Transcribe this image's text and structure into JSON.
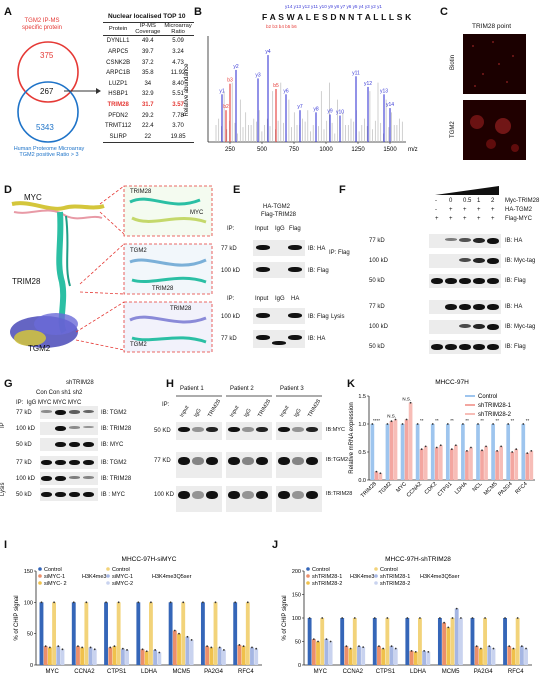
{
  "panels": {
    "A": {
      "label": "A",
      "venn_left_label": "TGM2 IP-MS\nspecific protein",
      "venn_right_label": "Human Proteome Microarray\nTGM2 positive Ratio > 3",
      "venn_left_count": "375",
      "venn_overlap_count": "267",
      "venn_right_count": "5343",
      "table_title": "Nuclear localised TOP 10",
      "table_headers": [
        "Protein",
        "IP-MS Coverage",
        "Microarray Ratio"
      ],
      "table_rows": [
        [
          "DYNLL1",
          "49.4",
          "5.09"
        ],
        [
          "ARPC5",
          "39.7",
          "3.24"
        ],
        [
          "CSNK2B",
          "37.2",
          "4.73"
        ],
        [
          "ARPC1B",
          "35.8",
          "11.92"
        ],
        [
          "LUZP1",
          "34",
          "8.40"
        ],
        [
          "HSBP1",
          "32.9",
          "5.51"
        ],
        [
          "TRIM28",
          "31.7",
          "3.57"
        ],
        [
          "PFDN2",
          "29.2",
          "7.78"
        ],
        [
          "TRMT112",
          "22.4",
          "3.70"
        ],
        [
          "SLIRP",
          "22",
          "19.85"
        ]
      ],
      "highlight_color": "#e53935"
    },
    "B": {
      "label": "B",
      "sequence": "F A S W A L E S D N N T A L L L S K",
      "y_ions": "y14 y13 y12 y11 y10 y9 y8 y7 y6 y5 y4 y3 y2 y1",
      "b_ions": "b2 b3 b4 b5 b6",
      "ylabel": "Relative abundance",
      "xunit": "m/z",
      "xticks": [
        "250",
        "500",
        "750",
        "1000",
        "1250",
        "1500"
      ],
      "peak_labels": [
        "y1",
        "b3",
        "y2",
        "y3",
        "y4",
        "y6",
        "y10",
        "y11",
        "y12",
        "y13",
        "y14",
        "y7",
        "y8",
        "y9",
        "b2",
        "b5"
      ],
      "ion_y_color": "#3a3ad6",
      "ion_b_color": "#e53935"
    },
    "C": {
      "label": "C",
      "title": "TRIM28 point",
      "rows": [
        "Biotin",
        "TGM2"
      ]
    },
    "D": {
      "label": "D",
      "labels": [
        "MYC",
        "TRIM28",
        "TGM2",
        "TRIM28",
        "TGM2",
        "MYC",
        "TRIM28",
        "TGM2",
        "TRIM28"
      ]
    },
    "E": {
      "label": "E",
      "head1": "HA-TGM2",
      "head2": "Flag-TRIM28",
      "ip_row": [
        "IP:",
        "Input",
        "IgG",
        "Flag"
      ],
      "ip_row2": [
        "IP:",
        "Input",
        "IgG",
        "HA"
      ],
      "mw": [
        "77 kD",
        "100 kD",
        "100 kD",
        "77 kD"
      ],
      "ib": [
        "IB: HA",
        "IB: Flag",
        "IB: Flag",
        "IB: HA"
      ]
    },
    "F": {
      "label": "F",
      "conditions": [
        {
          "name": "Myc-TRIM28",
          "vals": [
            "-",
            "0",
            "0.5",
            "1",
            "2"
          ]
        },
        {
          "name": "HA-TGM2",
          "vals": [
            "-",
            "+",
            "+",
            "+",
            "+"
          ]
        },
        {
          "name": "Flag-MYC",
          "vals": [
            "+",
            "+",
            "+",
            "+",
            "+"
          ]
        }
      ],
      "group_ip": "IP: Flag",
      "group_lysis": "Lysis",
      "mw": [
        "77 kD",
        "100 kD",
        "50 kD",
        "77 kD",
        "100 kD",
        "50 kD"
      ],
      "ib": [
        "IB: HA",
        "IB: Myc-tag",
        "IB: Flag",
        "IB: HA",
        "IB: Myc-tag",
        "IB: Flag"
      ]
    },
    "G": {
      "label": "G",
      "head": "shTRIM28",
      "sub": "Con Con sh1 sh2",
      "ip_row": "IP:  IgG MYC MYC MYC",
      "group_ip": "IP",
      "group_lysis": "Lysis",
      "mw": [
        "77 kD",
        "100 kD",
        "50 kD",
        "77 kD",
        "100 kD",
        "50 kD"
      ],
      "ib": [
        "IB: TGM2",
        "IB: TRIM28",
        "IB: MYC",
        "IB: TGM2",
        "IB: TRIM28",
        "IB : MYC"
      ]
    },
    "H": {
      "label": "H",
      "patients": [
        "Patient 1",
        "Patient 2",
        "Patient 3"
      ],
      "lanes": [
        "Input",
        "IgG",
        "TRIM28"
      ],
      "ip": "IP:",
      "mw": [
        "50 KD",
        "77 KD",
        "100 KD"
      ],
      "ib": [
        "IB:MYC",
        "IB:TGM2",
        "IB:TRIM28"
      ]
    },
    "K": {
      "label": "K",
      "title": "MHCC-97H",
      "ylabel": "Relative mRNA expression"
    },
    "I": {
      "label": "I",
      "title": "MHCC-97H-siMYC",
      "ylabel": "% of CHIP signal",
      "legend_group1": "H3K4me3",
      "legend_group2": "H3K4me3Q5ser",
      "legend_entries": [
        "Control",
        "siMYC-1",
        "siMYC- 2",
        "Control",
        "siMYC-1",
        "siMYC-2"
      ]
    },
    "J": {
      "label": "J",
      "title": "MHCC-97H-shTRIM28",
      "ylabel": "% of CHIP signal",
      "legend_group1": "H3K4me3",
      "legend_group2": "H3K4me3Q5ser",
      "legend_entries": [
        "Control",
        "shTRIM28-1",
        "shTRIM28-2",
        "Control",
        "shTRIM28-1",
        "shTRIM28-2"
      ]
    }
  },
  "chart_data": [
    {
      "panel": "K",
      "type": "bar",
      "title": "MHCC-97H",
      "ylabel": "Relative mRNA expression",
      "ylim": [
        0,
        1.5
      ],
      "yticks": [
        "0.0",
        "0.5",
        "1.0",
        "1.5"
      ],
      "categories": [
        "TRIM28",
        "TGM2",
        "MYC",
        "CCNA2",
        "CDK2",
        "CTPS1",
        "LDHA",
        "NCL",
        "MCM5",
        "PA2G4",
        "RFC4"
      ],
      "series": [
        {
          "name": "Control",
          "color": "#9ec5ee",
          "values": [
            1,
            1,
            1,
            1,
            1,
            1,
            1,
            1,
            1,
            1,
            1
          ]
        },
        {
          "name": "shTRIM28-1",
          "color": "#f3a6a0",
          "values": [
            0.15,
            1.05,
            1.08,
            0.55,
            0.58,
            0.55,
            0.52,
            0.53,
            0.52,
            0.5,
            0.48
          ]
        },
        {
          "name": "shTRIM28-2",
          "color": "#f7bdb7",
          "values": [
            0.12,
            1.08,
            1.38,
            0.6,
            0.62,
            0.62,
            0.58,
            0.6,
            0.6,
            0.55,
            0.52
          ]
        }
      ],
      "significance": [
        "****",
        "N.S.",
        "N.S.",
        "**",
        "**",
        "**",
        "**",
        "**",
        "**",
        "**",
        "**"
      ],
      "legend": "top-right"
    },
    {
      "panel": "I",
      "type": "bar",
      "title": "MHCC-97H-siMYC",
      "ylabel": "% of CHIP signal",
      "ylim": [
        0,
        150
      ],
      "yticks": [
        "0",
        "50",
        "100",
        "150"
      ],
      "categories": [
        "MYC",
        "CCNA2",
        "CTPS1",
        "LDHA",
        "MCM5",
        "PA2G4",
        "RFC4"
      ],
      "series": [
        {
          "name": "Control",
          "group": "H3K4me3",
          "color": "#3566b8",
          "values": [
            100,
            100,
            100,
            100,
            100,
            100,
            100
          ]
        },
        {
          "name": "siMYC-1",
          "group": "H3K4me3",
          "color": "#ec8f6a",
          "values": [
            30,
            30,
            28,
            25,
            55,
            30,
            32
          ]
        },
        {
          "name": "siMYC- 2",
          "group": "H3K4me3",
          "color": "#f0c14b",
          "values": [
            28,
            28,
            30,
            22,
            50,
            28,
            30
          ]
        },
        {
          "name": "Control",
          "group": "H3K4me3Q5ser",
          "color": "#f2d37a",
          "values": [
            100,
            100,
            100,
            100,
            100,
            100,
            100
          ]
        },
        {
          "name": "siMYC-1",
          "group": "H3K4me3Q5ser",
          "color": "#a5b6e3",
          "values": [
            30,
            28,
            26,
            24,
            45,
            28,
            28
          ]
        },
        {
          "name": "siMYC-2",
          "group": "H3K4me3Q5ser",
          "color": "#c9d3ef",
          "values": [
            25,
            25,
            24,
            20,
            40,
            24,
            26
          ]
        }
      ],
      "legend": "top-left"
    },
    {
      "panel": "J",
      "type": "bar",
      "title": "MHCC-97H-shTRIM28",
      "ylabel": "% of CHIP signal",
      "ylim": [
        0,
        200
      ],
      "yticks": [
        "0",
        "50",
        "100",
        "150",
        "200"
      ],
      "categories": [
        "MYC",
        "CCNA2",
        "CTPS1",
        "LDHA",
        "MCM5",
        "PA2G4",
        "RFC4"
      ],
      "series": [
        {
          "name": "Control",
          "group": "H3K4me3",
          "color": "#3566b8",
          "values": [
            100,
            100,
            100,
            100,
            100,
            100,
            100
          ]
        },
        {
          "name": "shTRIM28-1",
          "group": "H3K4me3",
          "color": "#ec8f6a",
          "values": [
            55,
            40,
            40,
            30,
            90,
            40,
            40
          ]
        },
        {
          "name": "shTRIM28-2",
          "group": "H3K4me3",
          "color": "#f0c14b",
          "values": [
            50,
            35,
            35,
            28,
            80,
            35,
            35
          ]
        },
        {
          "name": "Control",
          "group": "H3K4me3Q5ser",
          "color": "#f2d37a",
          "values": [
            100,
            100,
            100,
            100,
            100,
            100,
            100
          ]
        },
        {
          "name": "shTRIM28-1",
          "group": "H3K4me3Q5ser",
          "color": "#a5b6e3",
          "values": [
            55,
            40,
            40,
            30,
            120,
            40,
            40
          ]
        },
        {
          "name": "shTRIM28-2",
          "group": "H3K4me3Q5ser",
          "color": "#c9d3ef",
          "values": [
            50,
            38,
            35,
            28,
            100,
            35,
            35
          ]
        }
      ],
      "legend": "top-left"
    },
    {
      "panel": "A",
      "type": "table",
      "title": "Nuclear localised TOP 10",
      "columns": [
        "Protein",
        "IP-MS Coverage",
        "Microarray Ratio"
      ]
    }
  ]
}
